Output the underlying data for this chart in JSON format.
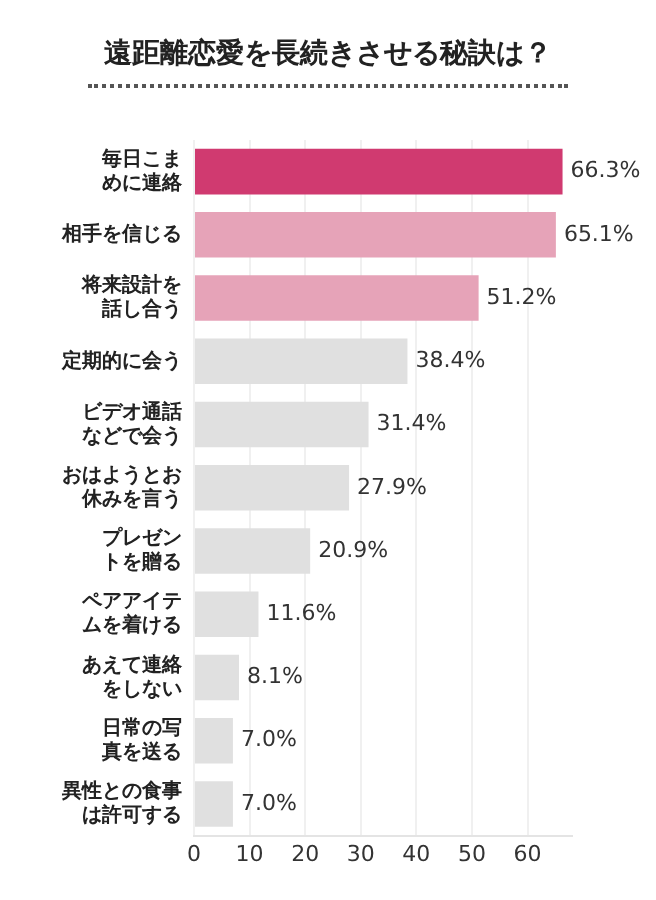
{
  "chart_data": {
    "type": "bar",
    "orientation": "horizontal",
    "title": "遠距離恋愛を長続きさせる秘訣は？",
    "categories": [
      "毎日こまめに連絡",
      "相手を信じる",
      "将来設計を話し合う",
      "定期的に会う",
      "ビデオ通話などで会う",
      "おはようとお休みを言う",
      "プレゼントを贈る",
      "ペアアイテムを着ける",
      "あえて連絡をしない",
      "日常の写真を送る",
      "異性との食事は許可する"
    ],
    "values": [
      66.3,
      65.1,
      51.2,
      38.4,
      31.4,
      27.9,
      20.9,
      11.6,
      8.1,
      7.0,
      7.0
    ],
    "colors": [
      "#d03a70",
      "#e6a3b8",
      "#e6a3b8",
      "#e0e0e0",
      "#e0e0e0",
      "#e0e0e0",
      "#e0e0e0",
      "#e0e0e0",
      "#e0e0e0",
      "#e0e0e0",
      "#e0e0e0"
    ],
    "value_labels": [
      "66.3%",
      "65.1%",
      "51.2%",
      "38.4%",
      "31.4%",
      "27.9%",
      "20.9%",
      "11.6%",
      "8.1%",
      "7.0%",
      "7.0%"
    ],
    "xlim": [
      0,
      68
    ],
    "xticks": [
      0,
      10,
      20,
      30,
      40,
      50,
      60
    ],
    "grid": "x",
    "legend": false
  }
}
